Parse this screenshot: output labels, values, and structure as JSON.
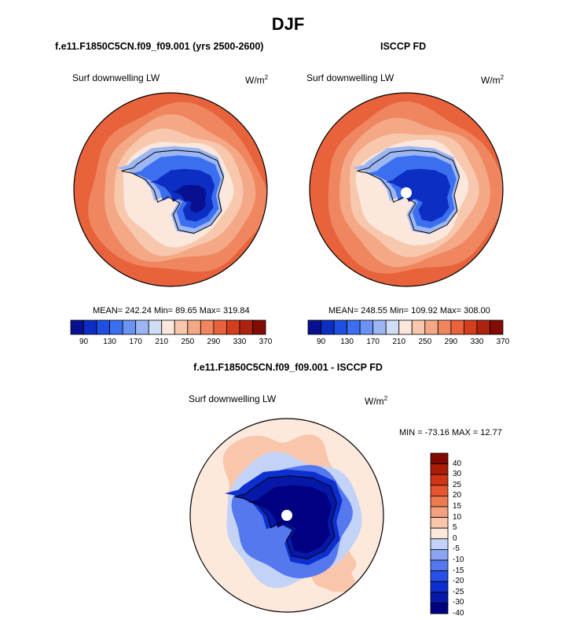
{
  "figure": {
    "title": "DJF"
  },
  "panels": [
    {
      "title": "f.e11.F1850C5CN.f09_f09.001 (yrs 2500-2600)",
      "variable": "Surf downwelling LW",
      "unit_base": "W/m",
      "unit_exp": "2",
      "stats": "MEAN= 242.24  Min=  89.65  Max= 319.84",
      "colorbar_ticks": [
        "90",
        "130",
        "170",
        "210",
        "250",
        "290",
        "330",
        "370"
      ],
      "pole_hole": false
    },
    {
      "title": "ISCCP FD",
      "variable": "Surf downwelling LW",
      "unit_base": "W/m",
      "unit_exp": "2",
      "stats": "MEAN= 248.55  Min= 109.92  Max= 308.00",
      "colorbar_ticks": [
        "90",
        "130",
        "170",
        "210",
        "250",
        "290",
        "330",
        "370"
      ],
      "pole_hole": true
    }
  ],
  "diff_panel": {
    "title": "f.e11.F1850C5CN.f09_f09.001 - ISCCP FD",
    "variable": "Surf downwelling LW",
    "unit_base": "W/m",
    "unit_exp": "2",
    "stats": "MIN = -73.16 MAX =  12.77",
    "colorbar_ticks": [
      "40",
      "30",
      "25",
      "20",
      "15",
      "10",
      "5",
      "0",
      "-5",
      "-10",
      "-15",
      "-20",
      "-25",
      "-30",
      "-40"
    ],
    "pole_hole": true
  },
  "colors": {
    "abs_scale": [
      "#08108f",
      "#0d2ec2",
      "#1f4fe0",
      "#3b6ff0",
      "#6b93f2",
      "#9cb6f4",
      "#cfddf7",
      "#fbe7db",
      "#f8c8ae",
      "#f4a886",
      "#ef865f",
      "#e8623b",
      "#d23e1e",
      "#ad2310",
      "#800c05"
    ],
    "diff_scale": [
      "#000080",
      "#0518a8",
      "#0d2fcf",
      "#2850e8",
      "#5578ee",
      "#8aa4f2",
      "#c3d3f8",
      "#fde8dc",
      "#f9c5ab",
      "#f4a07d",
      "#ee7a52",
      "#e5552f",
      "#d03415",
      "#ab1d07",
      "#800a00"
    ]
  }
}
